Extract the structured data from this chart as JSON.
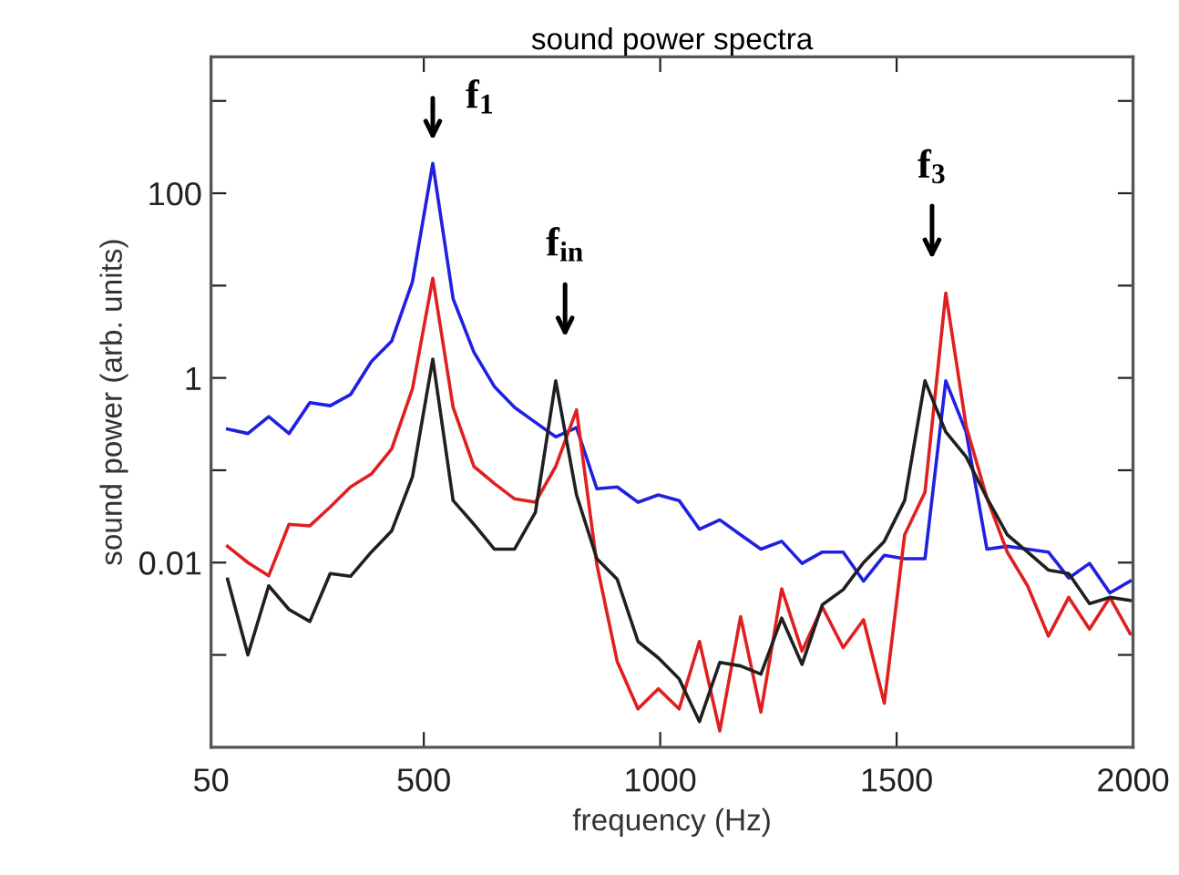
{
  "chart_data": {
    "type": "line",
    "title": "sound power spectra",
    "xlabel": "frequency (Hz)",
    "ylabel": "sound power (arb. units)",
    "log": "y",
    "x": [
      85,
      128,
      172,
      215,
      259,
      302,
      345,
      389,
      432,
      476,
      519,
      562,
      606,
      649,
      692,
      736,
      779,
      823,
      866,
      909,
      953,
      996,
      1040,
      1083,
      1126,
      1170,
      1213,
      1257,
      1300,
      1343,
      1387,
      1430,
      1474,
      1517,
      1560,
      1604,
      1647,
      1691,
      1734,
      1777,
      1821,
      1864,
      1908,
      1951,
      1994
    ],
    "series": [
      {
        "color": "#2020e0",
        "values": [
          0.28,
          0.25,
          0.38,
          0.25,
          0.54,
          0.5,
          0.66,
          1.5,
          2.5,
          11,
          210,
          7.2,
          1.9,
          0.81,
          0.48,
          0.33,
          0.23,
          0.29,
          0.063,
          0.066,
          0.045,
          0.054,
          0.047,
          0.023,
          0.029,
          0.02,
          0.014,
          0.017,
          0.0098,
          0.013,
          0.013,
          0.0063,
          0.012,
          0.011,
          0.011,
          0.93,
          0.26,
          0.014,
          0.015,
          0.014,
          0.013,
          0.0068,
          0.0098,
          0.0047,
          0.0063
        ]
      },
      {
        "color": "#e02020",
        "values": [
          0.015,
          0.01,
          0.0072,
          0.026,
          0.025,
          0.04,
          0.066,
          0.091,
          0.17,
          0.76,
          12,
          0.48,
          0.11,
          0.072,
          0.049,
          0.045,
          0.11,
          0.45,
          0.0095,
          0.00085,
          0.00026,
          0.00043,
          0.00026,
          0.0014,
          0.00015,
          0.0026,
          0.00024,
          0.0052,
          0.0011,
          0.0033,
          0.0012,
          0.0024,
          0.0003,
          0.02,
          0.058,
          8.3,
          0.3,
          0.05,
          0.013,
          0.0056,
          0.0016,
          0.0042,
          0.0019,
          0.0042,
          0.0017
        ]
      },
      {
        "color": "#202020",
        "values": [
          0.0066,
          0.001,
          0.0056,
          0.0031,
          0.0023,
          0.0076,
          0.0071,
          0.013,
          0.022,
          0.085,
          1.6,
          0.047,
          0.026,
          0.014,
          0.014,
          0.035,
          0.93,
          0.054,
          0.011,
          0.0066,
          0.0014,
          0.00093,
          0.00055,
          0.00019,
          0.00083,
          0.00076,
          0.00062,
          0.0025,
          0.00079,
          0.0035,
          0.0051,
          0.01,
          0.017,
          0.047,
          0.93,
          0.26,
          0.14,
          0.05,
          0.02,
          0.013,
          0.0083,
          0.0076,
          0.0036,
          0.0042,
          0.0039
        ]
      }
    ],
    "xlim": [
      50,
      2000
    ],
    "xticks": [
      50,
      500,
      1000,
      1500,
      2000
    ],
    "ylim": [
      0.0001,
      3000
    ],
    "yticks": [
      {
        "value": 0.001,
        "label": null
      },
      0.01,
      {
        "value": 0.1,
        "label": null
      },
      1,
      {
        "value": 10,
        "label": null
      },
      100,
      {
        "value": 1000,
        "label": null
      }
    ],
    "annotations": [
      "f$_{1}$",
      "f$_{in}$",
      "f$_{3}$"
    ],
    "grid": false,
    "marker": "none",
    "line_style": "solid"
  }
}
